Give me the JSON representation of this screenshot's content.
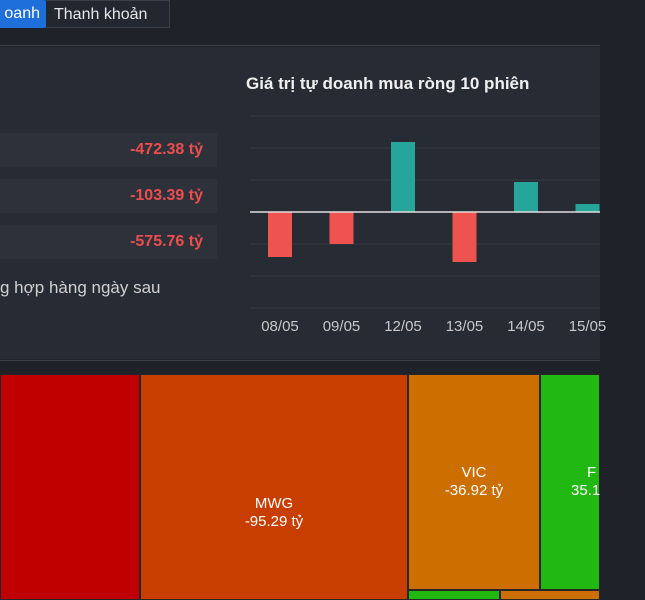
{
  "tabs": {
    "active_label": "oanh",
    "inactive_label": "Thanh khoản"
  },
  "summary": {
    "rows": [
      {
        "value": "-472.38 tỷ"
      },
      {
        "value": "-103.39 tỷ"
      },
      {
        "value": "-575.76 tỷ"
      }
    ],
    "note": "g hợp hàng ngày sau"
  },
  "chart_data": {
    "type": "bar",
    "title": "Giá trị tự doanh mua ròng 10 phiên",
    "categories": [
      "08/05",
      "09/05",
      "12/05",
      "13/05",
      "14/05",
      "15/05"
    ],
    "values": [
      -45,
      -32,
      70,
      -50,
      30,
      8
    ],
    "colors": {
      "positive": "#26a69a",
      "negative": "#ef5350"
    },
    "grid": true
  },
  "treemap": {
    "tiles": [
      {
        "name": "",
        "value": "",
        "color": "#c00000"
      },
      {
        "name": "MWG",
        "value": "-95.29 tỷ",
        "color": "#c83e00"
      },
      {
        "name": "VIC",
        "value": "-36.92 tỷ",
        "color": "#cc6e00"
      },
      {
        "name": "F",
        "value": "35.1",
        "color": "#22b812"
      },
      {
        "name": "",
        "value": "",
        "color": "#22b812"
      },
      {
        "name": "",
        "value": "",
        "color": "#cc6e00"
      }
    ]
  }
}
